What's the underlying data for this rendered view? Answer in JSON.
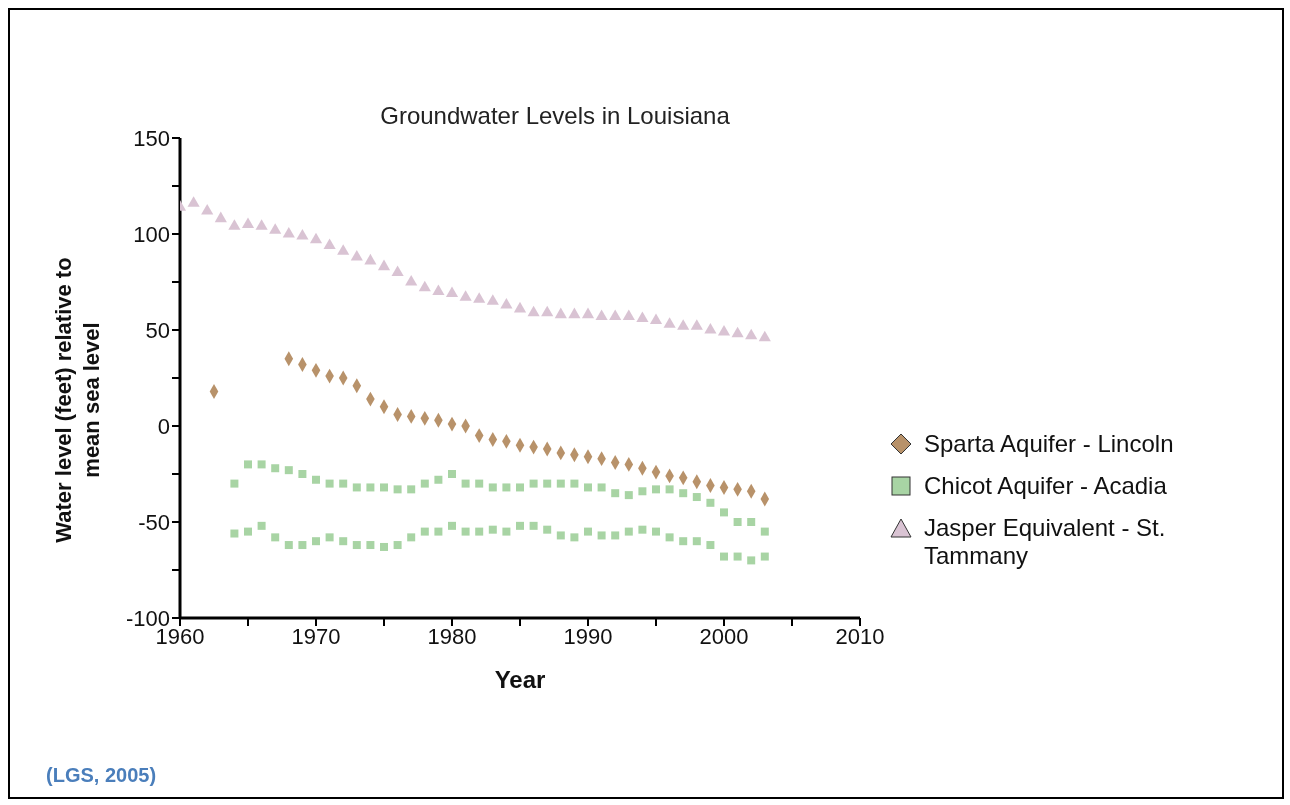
{
  "chart_data": {
    "type": "scatter",
    "title": "Groundwater Levels in Louisiana",
    "xlabel": "Year",
    "ylabel": "Water level (feet) relative to mean sea level",
    "annotations": [
      "(LGS, 2005)"
    ],
    "xlim": [
      1960,
      2010
    ],
    "xticks": [
      1960,
      {
        "value": 1965,
        "label": null
      },
      1970,
      {
        "value": 1975,
        "label": null
      },
      1980,
      {
        "value": 1985,
        "label": null
      },
      1990,
      {
        "value": 1995,
        "label": null
      },
      2000,
      {
        "value": 2005,
        "label": null
      },
      2010
    ],
    "ylim": [
      -100,
      150
    ],
    "yticks": [
      -100,
      {
        "value": -75,
        "label": null
      },
      -50,
      {
        "value": -25,
        "label": null
      },
      0,
      {
        "value": 25,
        "label": null
      },
      50,
      {
        "value": 75,
        "label": null
      },
      100,
      {
        "value": 125,
        "label": null
      },
      150
    ],
    "grid": false,
    "legend": "right",
    "series": [
      {
        "name": "Sparta Aquifer - Lincoln",
        "color": "#b8926a",
        "marker": "diamond",
        "x": [
          1962.5,
          1968,
          1969,
          1970,
          1971,
          1972,
          1973,
          1974,
          1975,
          1976,
          1977,
          1978,
          1979,
          1980,
          1981,
          1982,
          1983,
          1984,
          1985,
          1986,
          1987,
          1988,
          1989,
          1990,
          1991,
          1992,
          1993,
          1994,
          1995,
          1996,
          1997,
          1998,
          1999,
          2000,
          2001,
          2002,
          2003
        ],
        "values": [
          18,
          35,
          32,
          29,
          26,
          25,
          21,
          14,
          10,
          6,
          5,
          4,
          3,
          1,
          0,
          -5,
          -7,
          -8,
          -10,
          -11,
          -12,
          -14,
          -15,
          -16,
          -17,
          -19,
          -20,
          -22,
          -24,
          -26,
          -27,
          -29,
          -31,
          -32,
          -33,
          -34,
          -38
        ]
      },
      {
        "name": "Chicot Aquifer - Acadia",
        "color": "#a8d4a4",
        "marker": "square",
        "x": [
          1964,
          1964,
          1965,
          1965,
          1966,
          1966,
          1967,
          1967,
          1968,
          1968,
          1969,
          1969,
          1970,
          1970,
          1971,
          1971,
          1972,
          1972,
          1973,
          1973,
          1974,
          1974,
          1975,
          1975,
          1976,
          1976,
          1977,
          1977,
          1978,
          1978,
          1979,
          1979,
          1980,
          1980,
          1981,
          1981,
          1982,
          1982,
          1983,
          1983,
          1984,
          1984,
          1985,
          1985,
          1986,
          1986,
          1987,
          1987,
          1988,
          1988,
          1989,
          1989,
          1990,
          1990,
          1991,
          1991,
          1992,
          1992,
          1993,
          1993,
          1994,
          1994,
          1995,
          1995,
          1996,
          1996,
          1997,
          1997,
          1998,
          1998,
          1999,
          1999,
          2000,
          2000,
          2001,
          2001,
          2002,
          2002,
          2003,
          2003
        ],
        "values": [
          -30,
          -56,
          -20,
          -55,
          -20,
          -52,
          -22,
          -58,
          -23,
          -62,
          -25,
          -62,
          -28,
          -60,
          -30,
          -58,
          -30,
          -60,
          -32,
          -62,
          -32,
          -62,
          -32,
          -63,
          -33,
          -62,
          -33,
          -58,
          -30,
          -55,
          -28,
          -55,
          -25,
          -52,
          -30,
          -55,
          -30,
          -55,
          -32,
          -54,
          -32,
          -55,
          -32,
          -52,
          -30,
          -52,
          -30,
          -54,
          -30,
          -57,
          -30,
          -58,
          -32,
          -55,
          -32,
          -57,
          -35,
          -57,
          -36,
          -55,
          -34,
          -54,
          -33,
          -55,
          -33,
          -58,
          -35,
          -60,
          -37,
          -60,
          -40,
          -62,
          -45,
          -68,
          -50,
          -68,
          -50,
          -70,
          -55,
          -68
        ]
      },
      {
        "name": "Jasper Equivalent - St. Tammany",
        "color": "#d9c3d3",
        "marker": "triangle",
        "x": [
          1960,
          1961,
          1962,
          1963,
          1964,
          1965,
          1966,
          1967,
          1968,
          1969,
          1970,
          1971,
          1972,
          1973,
          1974,
          1975,
          1976,
          1977,
          1978,
          1979,
          1980,
          1981,
          1982,
          1983,
          1984,
          1985,
          1986,
          1987,
          1988,
          1989,
          1990,
          1991,
          1992,
          1993,
          1994,
          1995,
          1996,
          1997,
          1998,
          1999,
          2000,
          2001,
          2002,
          2003
        ],
        "values": [
          114,
          116,
          112,
          108,
          104,
          105,
          104,
          102,
          100,
          99,
          97,
          94,
          91,
          88,
          86,
          83,
          80,
          75,
          72,
          70,
          69,
          67,
          66,
          65,
          63,
          61,
          59,
          59,
          58,
          58,
          58,
          57,
          57,
          57,
          56,
          55,
          53,
          52,
          52,
          50,
          49,
          48,
          47,
          46
        ]
      }
    ]
  }
}
